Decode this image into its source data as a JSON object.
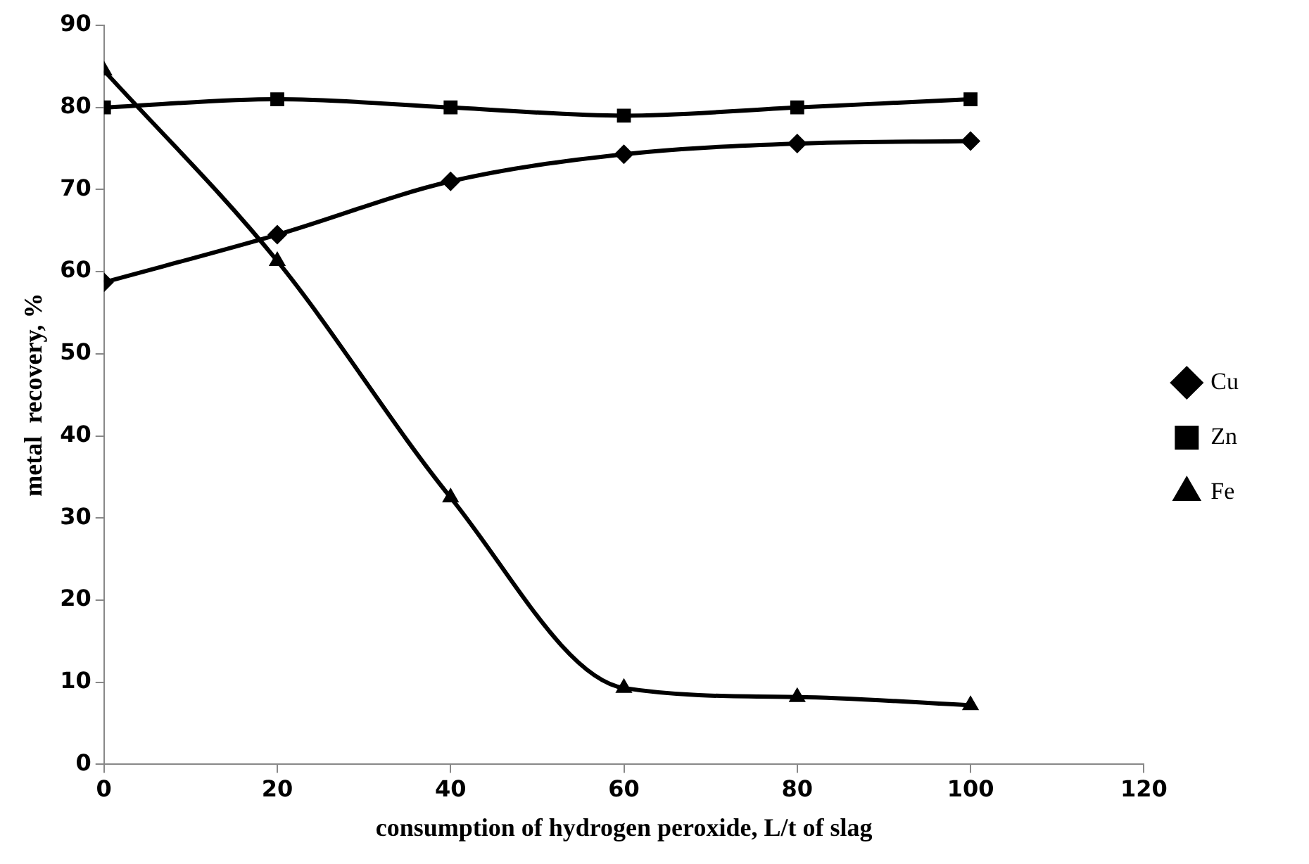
{
  "chart_data": {
    "type": "line",
    "xlabel": "consumption of hydrogen peroxide, L/t of slag",
    "ylabel": "metal  recovery, %",
    "x": [
      0,
      20,
      40,
      60,
      80,
      100
    ],
    "xlim": [
      0,
      120
    ],
    "xticks": [
      0,
      20,
      40,
      60,
      80,
      100,
      120
    ],
    "ylim": [
      0,
      90
    ],
    "yticks": [
      0,
      10,
      20,
      30,
      40,
      50,
      60,
      70,
      80,
      90
    ],
    "grid": false,
    "legend": "right",
    "line_style": "solid",
    "series": [
      {
        "name": "Cu",
        "color": "#000000",
        "marker": "diamond",
        "values": [
          58.7,
          64.5,
          71,
          74.3,
          75.6,
          75.9
        ]
      },
      {
        "name": "Zn",
        "color": "#000000",
        "marker": "square",
        "values": [
          80,
          81,
          80,
          79,
          80,
          81
        ]
      },
      {
        "name": "Fe",
        "color": "#000000",
        "marker": "triangle",
        "values": [
          84.5,
          61.3,
          32.5,
          9.3,
          8.2,
          7.2
        ]
      }
    ]
  }
}
